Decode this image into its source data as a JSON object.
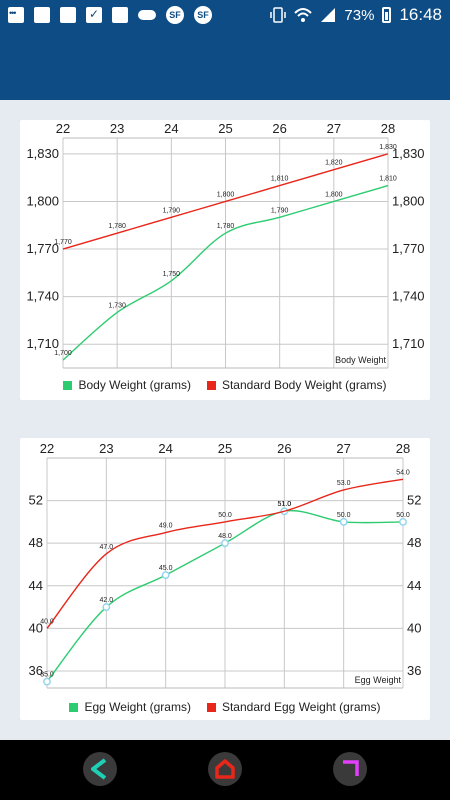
{
  "status_bar": {
    "battery_percent": "73%",
    "time": "16:48",
    "icons": [
      "more-icon",
      "square-icon",
      "square-icon",
      "checkbox-icon",
      "square-icon",
      "cloud-icon",
      "sf-badge-icon",
      "sf-badge-icon",
      "vibrate-icon",
      "wifi-icon",
      "signal-icon",
      "battery-icon"
    ]
  },
  "colors": {
    "app_bar": "#0d4c84",
    "series_green": "#2ecc71",
    "series_red": "#e8261a",
    "marker": "#8fd3ee"
  },
  "charts": [
    {
      "name": "body-weight-chart",
      "chart_data": {
        "type": "line",
        "x": [
          22,
          23,
          24,
          25,
          26,
          27,
          28
        ],
        "x_tick_labels": [
          "22",
          "23",
          "24",
          "25",
          "26",
          "27",
          "28"
        ],
        "y_tick_labels": [
          "1,710",
          "1,740",
          "1,770",
          "1,800",
          "1,830"
        ],
        "y_ticks": [
          1710,
          1740,
          1770,
          1800,
          1830
        ],
        "ylim": [
          1695,
          1840
        ],
        "corner_label": "Body Weight",
        "grid": true,
        "legend_position": "bottom",
        "series": [
          {
            "name": "Body Weight (grams)",
            "color": "#2ecc71",
            "values": [
              1700,
              1730,
              1750,
              1780,
              1790,
              1800,
              1810
            ],
            "labels": [
              "1,700",
              "1,730",
              "1,750",
              "1,780",
              "1,790",
              "1,800",
              "1,810"
            ],
            "markers": false
          },
          {
            "name": "Standard Body Weight (grams)",
            "color": "#e8261a",
            "values": [
              1770,
              1780,
              1790,
              1800,
              1810,
              1820,
              1830
            ],
            "labels": [
              "1,770",
              "1,780",
              "1,790",
              "1,800",
              "1,810",
              "1,820",
              "1,830"
            ],
            "markers": false
          }
        ]
      }
    },
    {
      "name": "egg-weight-chart",
      "chart_data": {
        "type": "line",
        "x": [
          22,
          23,
          24,
          25,
          26,
          27,
          28
        ],
        "x_tick_labels": [
          "22",
          "23",
          "24",
          "25",
          "26",
          "27",
          "28"
        ],
        "y_tick_labels": [
          "36",
          "40",
          "44",
          "48",
          "52"
        ],
        "y_ticks": [
          36,
          40,
          44,
          48,
          52
        ],
        "ylim": [
          34.4,
          56
        ],
        "corner_label": "Egg Weight",
        "grid": true,
        "legend_position": "bottom",
        "series": [
          {
            "name": "Egg Weight (grams)",
            "color": "#2ecc71",
            "values": [
              35,
              42,
              45,
              48,
              51,
              50,
              50
            ],
            "labels": [
              "35.0",
              "42.0",
              "45.0",
              "48.0",
              "51.0",
              "50.0",
              "50.0"
            ],
            "markers": true
          },
          {
            "name": "Standard Egg Weight (grams)",
            "color": "#e8261a",
            "values": [
              40,
              47,
              49,
              50,
              51,
              53,
              54
            ],
            "labels": [
              "40.0",
              "47.0",
              "49.0",
              "50.0",
              "51.0",
              "53.0",
              "54.0"
            ],
            "markers": false
          }
        ]
      }
    }
  ],
  "nav": {
    "buttons": [
      "back-icon",
      "home-icon",
      "recents-icon"
    ]
  }
}
